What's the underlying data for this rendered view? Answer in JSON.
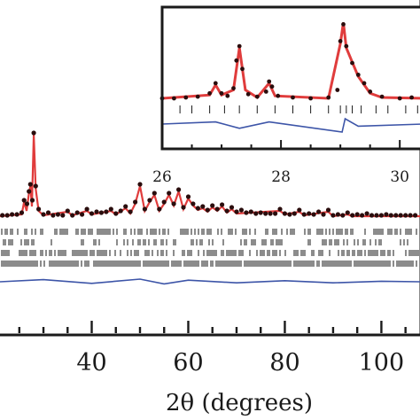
{
  "chart_data": [
    {
      "type": "line",
      "title": "",
      "xlabel": "2θ (degrees)",
      "ylabel": "",
      "xlim": [
        21,
        108
      ],
      "x_ticks": [
        40,
        60,
        80,
        100
      ],
      "x_tick_labels": [
        "40",
        "60",
        "80",
        "100"
      ],
      "grid": false,
      "colors": {
        "observed": "#2a0d0d",
        "calculated": "#e03c3c",
        "difference": "#3d55a8",
        "reflection_ticks": "#1a1a1a",
        "axes": "#1a1a1a"
      },
      "series": [
        {
          "kind": "observed_points",
          "points": [
            [
              21.5,
              0.05
            ],
            [
              22.5,
              0.05
            ],
            [
              23.5,
              0.06
            ],
            [
              24.5,
              0.06
            ],
            [
              25.5,
              0.08
            ],
            [
              26,
              0.22
            ],
            [
              26.6,
              0.18
            ],
            [
              27,
              0.32
            ],
            [
              27.3,
              0.4
            ],
            [
              27.7,
              0.22
            ],
            [
              28,
              0.98
            ],
            [
              28.4,
              0.38
            ],
            [
              29,
              0.12
            ],
            [
              30,
              0.06
            ],
            [
              31,
              0.08
            ],
            [
              32,
              0.05
            ],
            [
              33,
              0.06
            ],
            [
              34,
              0.05
            ],
            [
              35,
              0.1
            ],
            [
              36,
              0.05
            ],
            [
              37,
              0.08
            ],
            [
              38,
              0.06
            ],
            [
              39,
              0.12
            ],
            [
              40,
              0.07
            ],
            [
              41,
              0.09
            ],
            [
              42,
              0.08
            ],
            [
              43,
              0.09
            ],
            [
              44,
              0.12
            ],
            [
              45,
              0.07
            ],
            [
              46,
              0.1
            ],
            [
              47,
              0.15
            ],
            [
              48,
              0.09
            ],
            [
              49,
              0.2
            ],
            [
              50,
              0.4
            ],
            [
              51,
              0.12
            ],
            [
              52,
              0.22
            ],
            [
              53,
              0.3
            ],
            [
              54,
              0.12
            ],
            [
              55,
              0.2
            ],
            [
              56,
              0.3
            ],
            [
              57,
              0.18
            ],
            [
              58,
              0.34
            ],
            [
              59,
              0.14
            ],
            [
              60,
              0.26
            ],
            [
              61,
              0.18
            ],
            [
              62,
              0.13
            ],
            [
              63,
              0.15
            ],
            [
              64,
              0.11
            ],
            [
              65,
              0.16
            ],
            [
              66,
              0.12
            ],
            [
              67,
              0.17
            ],
            [
              68,
              0.1
            ],
            [
              69,
              0.14
            ],
            [
              70,
              0.09
            ],
            [
              71,
              0.11
            ],
            [
              72,
              0.08
            ],
            [
              73,
              0.09
            ],
            [
              74,
              0.07
            ],
            [
              75,
              0.08
            ],
            [
              76,
              0.07
            ],
            [
              77,
              0.07
            ],
            [
              78,
              0.07
            ],
            [
              79,
              0.12
            ],
            [
              80,
              0.07
            ],
            [
              81,
              0.06
            ],
            [
              82,
              0.07
            ],
            [
              83,
              0.11
            ],
            [
              84,
              0.06
            ],
            [
              85,
              0.07
            ],
            [
              86,
              0.06
            ],
            [
              87,
              0.09
            ],
            [
              88,
              0.06
            ],
            [
              89,
              0.11
            ],
            [
              90,
              0.05
            ],
            [
              91,
              0.06
            ],
            [
              92,
              0.05
            ],
            [
              93,
              0.08
            ],
            [
              94,
              0.05
            ],
            [
              95,
              0.06
            ],
            [
              96,
              0.05
            ],
            [
              97,
              0.07
            ],
            [
              98,
              0.05
            ],
            [
              99,
              0.05
            ],
            [
              100,
              0.05
            ],
            [
              101,
              0.06
            ],
            [
              102,
              0.05
            ],
            [
              103,
              0.05
            ],
            [
              104,
              0.05
            ],
            [
              105,
              0.05
            ],
            [
              106,
              0.05
            ],
            [
              107,
              0.05
            ]
          ]
        },
        {
          "kind": "calculated_curve",
          "points": [
            [
              21,
              0.04
            ],
            [
              25.5,
              0.06
            ],
            [
              26,
              0.2
            ],
            [
              26.5,
              0.1
            ],
            [
              27,
              0.3
            ],
            [
              27.3,
              0.38
            ],
            [
              27.6,
              0.15
            ],
            [
              28,
              0.96
            ],
            [
              28.4,
              0.35
            ],
            [
              29,
              0.1
            ],
            [
              30,
              0.05
            ],
            [
              35,
              0.09
            ],
            [
              36,
              0.05
            ],
            [
              39,
              0.1
            ],
            [
              40,
              0.06
            ],
            [
              44,
              0.1
            ],
            [
              45,
              0.06
            ],
            [
              47,
              0.13
            ],
            [
              48,
              0.07
            ],
            [
              49,
              0.18
            ],
            [
              50,
              0.38
            ],
            [
              51,
              0.1
            ],
            [
              52,
              0.2
            ],
            [
              53,
              0.28
            ],
            [
              54,
              0.1
            ],
            [
              55,
              0.18
            ],
            [
              56,
              0.28
            ],
            [
              57,
              0.16
            ],
            [
              58,
              0.32
            ],
            [
              59,
              0.12
            ],
            [
              60,
              0.24
            ],
            [
              61,
              0.16
            ],
            [
              62,
              0.11
            ],
            [
              63,
              0.13
            ],
            [
              64,
              0.09
            ],
            [
              65,
              0.14
            ],
            [
              66,
              0.1
            ],
            [
              67,
              0.15
            ],
            [
              68,
              0.08
            ],
            [
              69,
              0.12
            ],
            [
              70,
              0.07
            ],
            [
              79,
              0.1
            ],
            [
              80,
              0.06
            ],
            [
              83,
              0.09
            ],
            [
              84,
              0.05
            ],
            [
              89,
              0.09
            ],
            [
              90,
              0.04
            ],
            [
              93,
              0.06
            ],
            [
              94,
              0.04
            ],
            [
              108,
              0.04
            ]
          ]
        },
        {
          "kind": "difference_curve",
          "points": [
            [
              21,
              0
            ],
            [
              30,
              0.004
            ],
            [
              40,
              -0.003
            ],
            [
              50,
              0.005
            ],
            [
              55,
              -0.004
            ],
            [
              60,
              0.003
            ],
            [
              70,
              -0.002
            ],
            [
              80,
              0.002
            ],
            [
              90,
              -0.002
            ],
            [
              100,
              0.001
            ],
            [
              108,
              0
            ]
          ]
        }
      ],
      "reflection_tick_rows": 4,
      "inset": {
        "xlim": [
          26,
          30.4
        ],
        "x_ticks": [
          26,
          28,
          30
        ],
        "x_tick_labels": [
          "26",
          "28",
          "30"
        ],
        "observed_points": [
          [
            26,
            0.1
          ],
          [
            26.2,
            0.1
          ],
          [
            26.4,
            0.11
          ],
          [
            26.6,
            0.12
          ],
          [
            26.8,
            0.16
          ],
          [
            26.9,
            0.28
          ],
          [
            27,
            0.16
          ],
          [
            27.1,
            0.13
          ],
          [
            27.2,
            0.22
          ],
          [
            27.25,
            0.55
          ],
          [
            27.3,
            0.72
          ],
          [
            27.35,
            0.45
          ],
          [
            27.45,
            0.15
          ],
          [
            27.6,
            0.12
          ],
          [
            27.75,
            0.18
          ],
          [
            27.8,
            0.3
          ],
          [
            27.85,
            0.24
          ],
          [
            27.95,
            0.13
          ],
          [
            28.2,
            0.11
          ],
          [
            28.5,
            0.1
          ],
          [
            28.8,
            0.11
          ],
          [
            28.95,
            0.2
          ],
          [
            29,
            0.78
          ],
          [
            29.05,
            0.98
          ],
          [
            29.1,
            0.72
          ],
          [
            29.2,
            0.52
          ],
          [
            29.3,
            0.38
          ],
          [
            29.4,
            0.28
          ],
          [
            29.5,
            0.18
          ],
          [
            29.7,
            0.12
          ],
          [
            30,
            0.1
          ],
          [
            30.2,
            0.11
          ],
          [
            30.4,
            0.1
          ]
        ],
        "calculated_curve": [
          [
            26,
            0.1
          ],
          [
            26.8,
            0.14
          ],
          [
            26.9,
            0.26
          ],
          [
            27,
            0.14
          ],
          [
            27.2,
            0.2
          ],
          [
            27.3,
            0.7
          ],
          [
            27.4,
            0.2
          ],
          [
            27.6,
            0.11
          ],
          [
            27.8,
            0.28
          ],
          [
            27.9,
            0.13
          ],
          [
            28.8,
            0.1
          ],
          [
            29,
            0.75
          ],
          [
            29.05,
            1.0
          ],
          [
            29.1,
            0.7
          ],
          [
            29.3,
            0.36
          ],
          [
            29.5,
            0.16
          ],
          [
            29.7,
            0.11
          ],
          [
            30.4,
            0.1
          ]
        ],
        "difference_curve": [
          [
            26,
            0
          ],
          [
            26.9,
            0.004
          ],
          [
            27.3,
            -0.008
          ],
          [
            27.8,
            0.004
          ],
          [
            29.03,
            -0.015
          ],
          [
            29.08,
            0.01
          ],
          [
            29.3,
            -0.004
          ],
          [
            30.4,
            0
          ]
        ],
        "reflection_ticks": [
          26.3,
          26.5,
          26.8,
          27.05,
          27.3,
          27.6,
          27.9,
          28.2,
          28.5,
          28.8,
          29.0,
          29.1,
          29.2,
          29.35,
          29.6,
          29.8,
          30.1,
          30.3
        ]
      }
    }
  ]
}
